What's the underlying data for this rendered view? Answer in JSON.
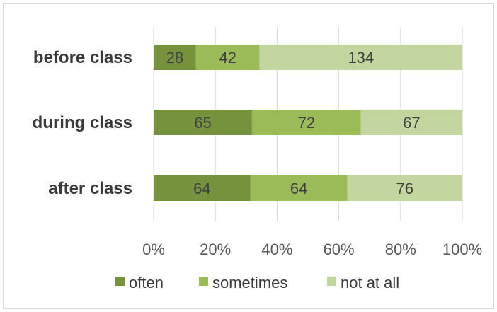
{
  "chart_data": {
    "type": "bar",
    "orientation": "horizontal",
    "stacking": "percent",
    "categories": [
      "before class",
      "during class",
      "after class"
    ],
    "series": [
      {
        "name": "often",
        "color": "#76923c",
        "values": [
          28,
          65,
          64
        ]
      },
      {
        "name": "sometimes",
        "color": "#9bbb59",
        "values": [
          42,
          72,
          64
        ]
      },
      {
        "name": "not at all",
        "color": "#c4d6a0",
        "values": [
          134,
          67,
          76
        ]
      }
    ],
    "x_ticks": [
      "0%",
      "20%",
      "40%",
      "60%",
      "80%",
      "100%"
    ],
    "xlim": [
      0,
      100
    ],
    "grid": true,
    "legend_position": "bottom",
    "title": "",
    "xlabel": "",
    "ylabel": ""
  }
}
